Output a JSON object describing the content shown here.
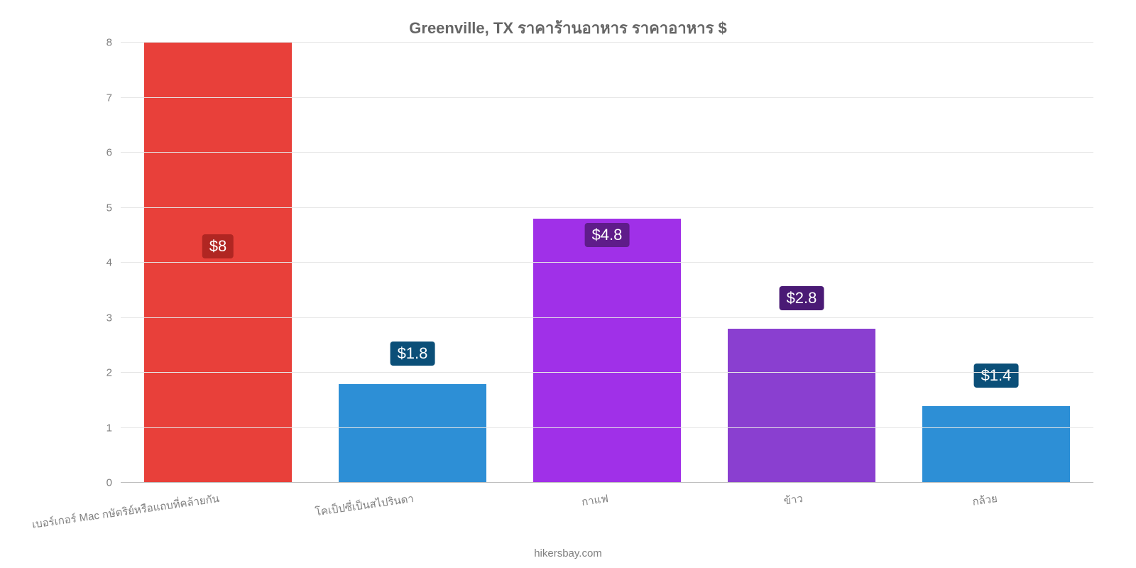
{
  "chart": {
    "type": "bar",
    "title": "Greenville, TX ราคาร้านอาหาร ราคาอาหาร $",
    "title_fontsize": 22,
    "title_color": "#666666",
    "credit": "hikersbay.com",
    "background_color": "#ffffff",
    "grid_color": "#e6e6e6",
    "axis_text_color": "#808080",
    "ylim": [
      0,
      8
    ],
    "ytick_step": 1,
    "yticks": [
      0,
      1,
      2,
      3,
      4,
      5,
      6,
      7,
      8
    ],
    "bar_width_ratio": 0.76,
    "label_fontsize": 22,
    "tick_fontsize": 15,
    "xtick_rotation_deg": -8,
    "categories": [
      "เบอร์เกอร์ Mac กษัตริย์หรือแถบที่คล้ายกัน",
      "โคเป็ปซี่เป็นสไปรินดา",
      "กาแฟ",
      "ข้าว",
      "กล้วย"
    ],
    "values": [
      8,
      1.8,
      4.8,
      2.8,
      1.4
    ],
    "value_labels": [
      "$8",
      "$1.8",
      "$4.8",
      "$2.8",
      "$1.4"
    ],
    "bar_colors": [
      "#e8403a",
      "#2d8fd6",
      "#a030e8",
      "#8a3fd0",
      "#2d8fd6"
    ],
    "label_bg_colors": [
      "#b02622",
      "#0b4f78",
      "#5f1c8a",
      "#4a1a75",
      "#0b4f78"
    ],
    "label_y_offsets": [
      3.7,
      -0.55,
      0.3,
      -0.55,
      -0.55
    ]
  }
}
